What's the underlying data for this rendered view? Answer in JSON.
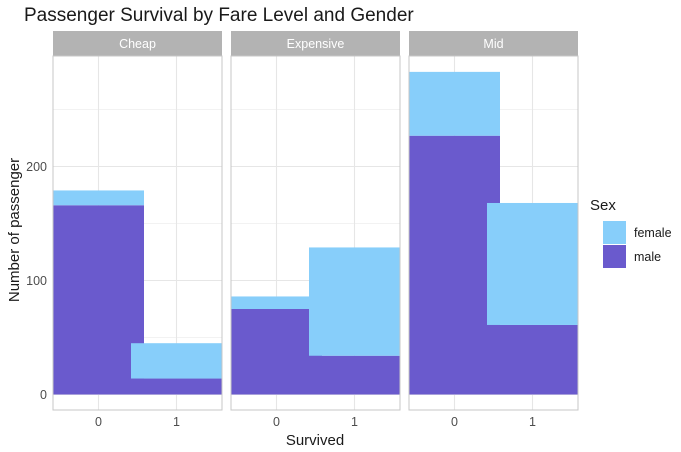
{
  "chart_data": {
    "type": "bar",
    "stacked": true,
    "title": "Passenger Survival by Fare Level and Gender",
    "xlabel": "Survived",
    "ylabel": "Number of passenger",
    "ylim": [
      0,
      300
    ],
    "yticks": [
      0,
      100,
      200
    ],
    "categories": [
      "0",
      "1"
    ],
    "grid": true,
    "legend": {
      "title": "Sex",
      "position": "right"
    },
    "series": [
      {
        "name": "female",
        "color": "#87CEFA"
      },
      {
        "name": "male",
        "color": "#6A5ACD"
      }
    ],
    "panels": [
      {
        "label": "Cheap",
        "values": {
          "female": [
            13,
            31
          ],
          "male": [
            166,
            14
          ]
        }
      },
      {
        "label": "Expensive",
        "values": {
          "female": [
            11,
            95
          ],
          "male": [
            75,
            34
          ]
        }
      },
      {
        "label": "Mid",
        "values": {
          "female": [
            56,
            107
          ],
          "male": [
            227,
            61
          ]
        }
      }
    ]
  },
  "colors": {
    "panel_strip": "#B3B3B3",
    "grid": "#E6E6E6",
    "panel_border": "#C7C7C7",
    "text": "#1a1a1a",
    "axis_text": "#4D4D4D"
  }
}
